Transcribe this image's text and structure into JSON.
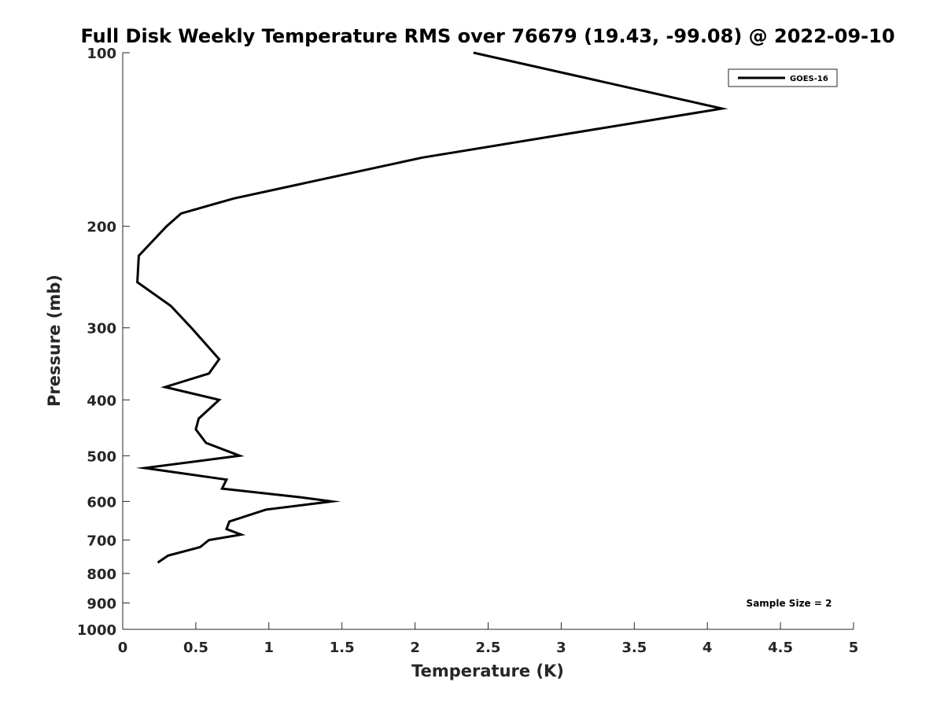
{
  "chart_data": {
    "type": "line",
    "title": "Full Disk Weekly Temperature RMS over 76679 (19.43, -99.08) @ 2022-09-10",
    "xlabel": "Temperature (K)",
    "ylabel": "Pressure (mb)",
    "xlim": [
      0,
      5
    ],
    "ylim": [
      100,
      1000
    ],
    "y_scale": "log",
    "y_reversed": true,
    "x_ticks": [
      0,
      0.5,
      1,
      1.5,
      2,
      2.5,
      3,
      3.5,
      4,
      4.5,
      5
    ],
    "x_tick_labels": [
      "0",
      "0.5",
      "1",
      "1.5",
      "2",
      "2.5",
      "3",
      "3.5",
      "4",
      "4.5",
      "5"
    ],
    "y_ticks": [
      100,
      200,
      300,
      400,
      500,
      600,
      700,
      800,
      900,
      1000
    ],
    "y_tick_labels": [
      "100",
      "200",
      "300",
      "400",
      "500",
      "600",
      "700",
      "800",
      "900",
      "1000"
    ],
    "grid": false,
    "legend_position": "top-right",
    "annotation": "Sample Size = 2",
    "series": [
      {
        "name": "GOES-16",
        "color": "#000000",
        "x": [
          2.4,
          4.1,
          2.05,
          0.76,
          0.4,
          0.3,
          0.11,
          0.1,
          0.33,
          0.47,
          0.66,
          0.59,
          0.29,
          0.66,
          0.52,
          0.5,
          0.57,
          0.8,
          0.15,
          0.71,
          0.68,
          1.21,
          1.43,
          0.98,
          0.73,
          0.71,
          0.81,
          0.59,
          0.53,
          0.31,
          0.24
        ],
        "y": [
          100,
          125,
          152,
          179,
          190,
          200,
          225,
          250,
          275,
          300,
          340,
          360,
          380,
          400,
          431,
          450,
          475,
          500,
          525,
          550,
          570,
          590,
          600,
          620,
          650,
          670,
          685,
          700,
          720,
          745,
          766
        ]
      }
    ]
  }
}
